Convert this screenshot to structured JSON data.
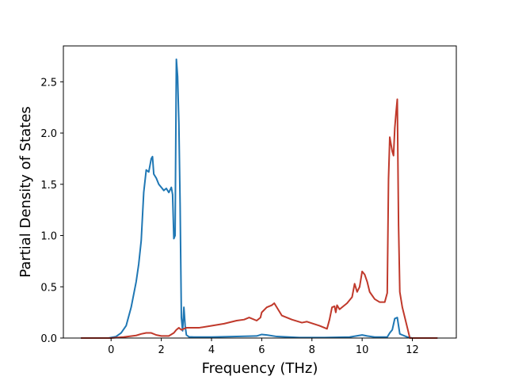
{
  "chart_data": {
    "type": "line",
    "title": "",
    "xlabel": "Frequency (THz)",
    "ylabel": "Partial Density of States",
    "xlim": [
      -1.9,
      13.75
    ],
    "ylim": [
      0,
      2.85
    ],
    "xticks": [
      0,
      2,
      4,
      6,
      8,
      10,
      12
    ],
    "xtick_labels": [
      "0",
      "2",
      "4",
      "6",
      "8",
      "10",
      "12"
    ],
    "yticks": [
      0.0,
      0.5,
      1.0,
      1.5,
      2.0,
      2.5
    ],
    "ytick_labels": [
      "0.0",
      "0.5",
      "1.0",
      "1.5",
      "2.0",
      "2.5"
    ],
    "grid": false,
    "legend": "none",
    "series": [
      {
        "color": "#1f77b4",
        "x": [
          -1.2,
          -0.1,
          0.0,
          0.2,
          0.4,
          0.6,
          0.8,
          1.0,
          1.1,
          1.2,
          1.3,
          1.4,
          1.5,
          1.6,
          1.65,
          1.7,
          1.8,
          1.9,
          2.0,
          2.1,
          2.2,
          2.3,
          2.4,
          2.45,
          2.5,
          2.55,
          2.6,
          2.65,
          2.7,
          2.75,
          2.8,
          2.85,
          2.9,
          2.95,
          3.0,
          3.1,
          3.3,
          4.0,
          5.0,
          5.8,
          6.0,
          6.2,
          6.6,
          7.5,
          8.5,
          9.5,
          10.0,
          10.2,
          10.5,
          11.0,
          11.1,
          11.2,
          11.3,
          11.4,
          11.5,
          11.6,
          11.7,
          11.8,
          12.0,
          13.0
        ],
        "y": [
          0.0,
          0.0,
          0.005,
          0.015,
          0.05,
          0.12,
          0.3,
          0.55,
          0.72,
          0.95,
          1.42,
          1.64,
          1.62,
          1.75,
          1.77,
          1.6,
          1.56,
          1.5,
          1.47,
          1.44,
          1.46,
          1.42,
          1.47,
          1.4,
          0.97,
          1.0,
          2.72,
          2.55,
          2.1,
          1.3,
          0.2,
          0.07,
          0.3,
          0.12,
          0.03,
          0.012,
          0.01,
          0.01,
          0.015,
          0.02,
          0.035,
          0.03,
          0.015,
          0.005,
          0.005,
          0.01,
          0.03,
          0.02,
          0.01,
          0.01,
          0.05,
          0.08,
          0.19,
          0.2,
          0.04,
          0.03,
          0.02,
          0.01,
          0.0,
          0.0
        ]
      },
      {
        "color": "#c0392b",
        "x": [
          -1.2,
          0.0,
          0.5,
          1.0,
          1.2,
          1.4,
          1.6,
          1.8,
          2.0,
          2.3,
          2.5,
          2.6,
          2.7,
          2.8,
          2.9,
          3.0,
          3.5,
          4.0,
          4.5,
          5.0,
          5.3,
          5.5,
          5.8,
          5.95,
          6.0,
          6.2,
          6.4,
          6.5,
          6.8,
          7.2,
          7.6,
          7.8,
          8.3,
          8.6,
          8.7,
          8.8,
          8.9,
          8.95,
          9.0,
          9.1,
          9.2,
          9.4,
          9.6,
          9.7,
          9.8,
          9.9,
          10.0,
          10.1,
          10.2,
          10.3,
          10.5,
          10.7,
          10.8,
          10.9,
          11.0,
          11.05,
          11.1,
          11.2,
          11.25,
          11.3,
          11.35,
          11.4,
          11.45,
          11.5,
          11.6,
          11.8,
          11.9,
          12.0,
          12.5,
          13.0
        ],
        "y": [
          0.0,
          0.0,
          0.01,
          0.025,
          0.04,
          0.05,
          0.05,
          0.03,
          0.02,
          0.02,
          0.05,
          0.08,
          0.1,
          0.08,
          0.09,
          0.1,
          0.1,
          0.12,
          0.14,
          0.17,
          0.18,
          0.2,
          0.17,
          0.2,
          0.25,
          0.3,
          0.32,
          0.34,
          0.22,
          0.18,
          0.15,
          0.16,
          0.12,
          0.09,
          0.18,
          0.3,
          0.31,
          0.25,
          0.32,
          0.28,
          0.3,
          0.34,
          0.4,
          0.53,
          0.45,
          0.5,
          0.65,
          0.62,
          0.55,
          0.45,
          0.38,
          0.35,
          0.35,
          0.35,
          0.44,
          1.55,
          1.96,
          1.82,
          1.78,
          2.05,
          2.2,
          2.33,
          1.1,
          0.45,
          0.3,
          0.1,
          0.0,
          0.0,
          0.0,
          0.0
        ]
      }
    ]
  }
}
